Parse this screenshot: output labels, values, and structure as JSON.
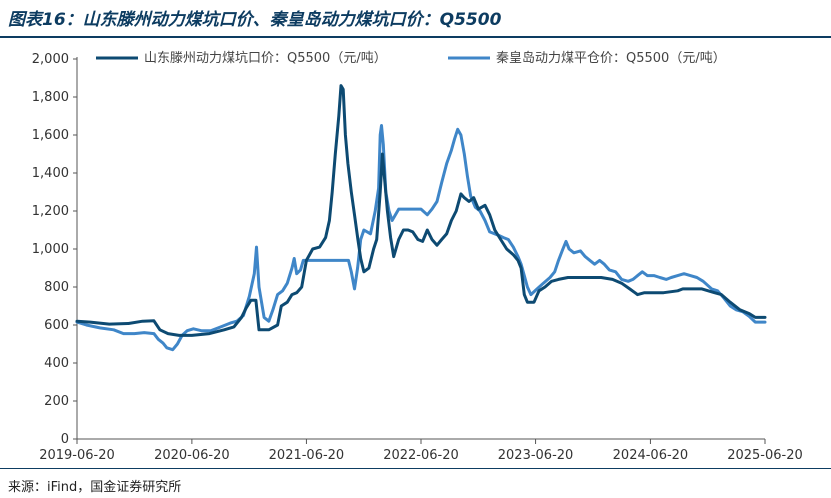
{
  "header": {
    "title": "图表16：山东滕州动力煤坑口价、秦皇岛动力煤坑口价：Q5500"
  },
  "footer": {
    "source": "来源：iFind，国金证券研究所"
  },
  "chart_data": {
    "type": "line",
    "title": "图表16：山东滕州动力煤坑口价、秦皇岛动力煤坑口价：Q5500",
    "ylim": [
      0,
      2000
    ],
    "yticks": [
      "0",
      "200",
      "400",
      "600",
      "800",
      "1,000",
      "1,200",
      "1,400",
      "1,600",
      "1,800",
      "2,000"
    ],
    "xticks": [
      "2019-06-20",
      "2020-06-20",
      "2021-06-20",
      "2022-06-20",
      "2023-06-20",
      "2024-06-20",
      "2025-06-20"
    ],
    "x_range": [
      "2019-06-20",
      "2025-06-20"
    ],
    "grid": false,
    "legend_position": "top",
    "series": [
      {
        "name": "山东滕州动力煤坑口价：Q5500（元/吨）",
        "color": "#0d4a72",
        "points": [
          [
            "2019-06-20",
            620
          ],
          [
            "2019-08-01",
            615
          ],
          [
            "2019-10-01",
            605
          ],
          [
            "2019-12-01",
            608
          ],
          [
            "2020-01-15",
            620
          ],
          [
            "2020-02-20",
            622
          ],
          [
            "2020-03-10",
            575
          ],
          [
            "2020-04-05",
            555
          ],
          [
            "2020-05-10",
            545
          ],
          [
            "2020-06-20",
            545
          ],
          [
            "2020-08-15",
            555
          ],
          [
            "2020-10-01",
            575
          ],
          [
            "2020-11-01",
            590
          ],
          [
            "2020-11-25",
            640
          ],
          [
            "2020-12-10",
            690
          ],
          [
            "2020-12-25",
            730
          ],
          [
            "2021-01-10",
            730
          ],
          [
            "2021-01-20",
            575
          ],
          [
            "2021-02-20",
            575
          ],
          [
            "2021-03-20",
            600
          ],
          [
            "2021-04-01",
            700
          ],
          [
            "2021-04-20",
            720
          ],
          [
            "2021-05-05",
            760
          ],
          [
            "2021-05-20",
            770
          ],
          [
            "2021-06-05",
            800
          ],
          [
            "2021-06-20",
            940
          ],
          [
            "2021-07-10",
            1000
          ],
          [
            "2021-08-01",
            1010
          ],
          [
            "2021-08-20",
            1060
          ],
          [
            "2021-09-01",
            1150
          ],
          [
            "2021-09-10",
            1300
          ],
          [
            "2021-09-20",
            1500
          ],
          [
            "2021-10-01",
            1700
          ],
          [
            "2021-10-08",
            1860
          ],
          [
            "2021-10-15",
            1840
          ],
          [
            "2021-10-22",
            1600
          ],
          [
            "2021-10-30",
            1450
          ],
          [
            "2021-11-10",
            1300
          ],
          [
            "2021-11-20",
            1180
          ],
          [
            "2021-12-01",
            1050
          ],
          [
            "2021-12-10",
            950
          ],
          [
            "2021-12-20",
            880
          ],
          [
            "2022-01-05",
            900
          ],
          [
            "2022-01-20",
            1000
          ],
          [
            "2022-01-30",
            1050
          ],
          [
            "2022-02-10",
            1300
          ],
          [
            "2022-02-17",
            1500
          ],
          [
            "2022-02-25",
            1350
          ],
          [
            "2022-03-05",
            1200
          ],
          [
            "2022-03-15",
            1060
          ],
          [
            "2022-03-25",
            960
          ],
          [
            "2022-04-10",
            1050
          ],
          [
            "2022-04-25",
            1100
          ],
          [
            "2022-05-10",
            1100
          ],
          [
            "2022-05-25",
            1090
          ],
          [
            "2022-06-10",
            1050
          ],
          [
            "2022-06-25",
            1040
          ],
          [
            "2022-07-10",
            1100
          ],
          [
            "2022-07-25",
            1050
          ],
          [
            "2022-08-10",
            1020
          ],
          [
            "2022-08-25",
            1050
          ],
          [
            "2022-09-10",
            1080
          ],
          [
            "2022-09-25",
            1150
          ],
          [
            "2022-10-10",
            1200
          ],
          [
            "2022-10-25",
            1290
          ],
          [
            "2022-11-05",
            1270
          ],
          [
            "2022-11-20",
            1250
          ],
          [
            "2022-12-05",
            1270
          ],
          [
            "2022-12-20",
            1210
          ],
          [
            "2023-01-10",
            1230
          ],
          [
            "2023-01-25",
            1180
          ],
          [
            "2023-02-10",
            1100
          ],
          [
            "2023-03-01",
            1050
          ],
          [
            "2023-03-20",
            1000
          ],
          [
            "2023-04-10",
            970
          ],
          [
            "2023-04-25",
            940
          ],
          [
            "2023-05-05",
            900
          ],
          [
            "2023-05-15",
            760
          ],
          [
            "2023-05-25",
            720
          ],
          [
            "2023-06-15",
            720
          ],
          [
            "2023-07-01",
            780
          ],
          [
            "2023-07-20",
            800
          ],
          [
            "2023-08-10",
            830
          ],
          [
            "2023-09-01",
            840
          ],
          [
            "2023-10-01",
            850
          ],
          [
            "2023-12-01",
            850
          ],
          [
            "2024-01-15",
            850
          ],
          [
            "2024-02-20",
            840
          ],
          [
            "2024-03-20",
            820
          ],
          [
            "2024-04-15",
            790
          ],
          [
            "2024-05-10",
            760
          ],
          [
            "2024-06-01",
            770
          ],
          [
            "2024-08-01",
            770
          ],
          [
            "2024-09-15",
            780
          ],
          [
            "2024-10-01",
            790
          ],
          [
            "2024-12-01",
            790
          ],
          [
            "2025-01-10",
            770
          ],
          [
            "2025-02-01",
            760
          ],
          [
            "2025-03-01",
            720
          ],
          [
            "2025-04-01",
            680
          ],
          [
            "2025-05-01",
            660
          ],
          [
            "2025-05-20",
            640
          ],
          [
            "2025-06-20",
            640
          ]
        ]
      },
      {
        "name": "秦皇岛动力煤平仓价：Q5500（元/吨）",
        "color": "#3f86c8",
        "points": [
          [
            "2019-06-20",
            615
          ],
          [
            "2019-07-20",
            600
          ],
          [
            "2019-09-01",
            585
          ],
          [
            "2019-10-15",
            575
          ],
          [
            "2019-11-15",
            555
          ],
          [
            "2019-12-20",
            555
          ],
          [
            "2020-01-20",
            560
          ],
          [
            "2020-02-20",
            555
          ],
          [
            "2020-03-05",
            525
          ],
          [
            "2020-03-20",
            505
          ],
          [
            "2020-04-01",
            480
          ],
          [
            "2020-04-20",
            470
          ],
          [
            "2020-05-05",
            500
          ],
          [
            "2020-05-20",
            545
          ],
          [
            "2020-06-05",
            570
          ],
          [
            "2020-06-25",
            580
          ],
          [
            "2020-07-20",
            570
          ],
          [
            "2020-08-20",
            570
          ],
          [
            "2020-09-20",
            590
          ],
          [
            "2020-10-20",
            610
          ],
          [
            "2020-11-10",
            620
          ],
          [
            "2020-12-01",
            650
          ],
          [
            "2020-12-20",
            750
          ],
          [
            "2021-01-05",
            870
          ],
          [
            "2021-01-12",
            1010
          ],
          [
            "2021-01-20",
            800
          ],
          [
            "2021-02-05",
            640
          ],
          [
            "2021-02-20",
            620
          ],
          [
            "2021-03-05",
            680
          ],
          [
            "2021-03-20",
            760
          ],
          [
            "2021-04-05",
            780
          ],
          [
            "2021-04-20",
            820
          ],
          [
            "2021-05-05",
            900
          ],
          [
            "2021-05-12",
            950
          ],
          [
            "2021-05-20",
            870
          ],
          [
            "2021-06-01",
            890
          ],
          [
            "2021-06-10",
            940
          ],
          [
            "2021-09-15",
            940
          ],
          [
            "2021-10-15",
            940
          ],
          [
            "2021-11-01",
            940
          ],
          [
            "2021-11-10",
            880
          ],
          [
            "2021-11-20",
            790
          ],
          [
            "2021-11-30",
            900
          ],
          [
            "2021-12-10",
            1050
          ],
          [
            "2021-12-20",
            1100
          ],
          [
            "2022-01-10",
            1080
          ],
          [
            "2022-01-25",
            1200
          ],
          [
            "2022-02-05",
            1320
          ],
          [
            "2022-02-10",
            1600
          ],
          [
            "2022-02-14",
            1650
          ],
          [
            "2022-02-20",
            1550
          ],
          [
            "2022-02-28",
            1300
          ],
          [
            "2022-03-10",
            1200
          ],
          [
            "2022-03-20",
            1150
          ],
          [
            "2022-04-10",
            1210
          ],
          [
            "2022-05-15",
            1210
          ],
          [
            "2022-06-20",
            1210
          ],
          [
            "2022-07-10",
            1180
          ],
          [
            "2022-07-25",
            1210
          ],
          [
            "2022-08-10",
            1250
          ],
          [
            "2022-08-25",
            1350
          ],
          [
            "2022-09-10",
            1450
          ],
          [
            "2022-09-25",
            1520
          ],
          [
            "2022-10-05",
            1580
          ],
          [
            "2022-10-15",
            1630
          ],
          [
            "2022-10-25",
            1600
          ],
          [
            "2022-11-05",
            1500
          ],
          [
            "2022-11-15",
            1380
          ],
          [
            "2022-11-25",
            1280
          ],
          [
            "2022-12-10",
            1220
          ],
          [
            "2022-12-25",
            1200
          ],
          [
            "2023-01-10",
            1150
          ],
          [
            "2023-01-25",
            1090
          ],
          [
            "2023-02-10",
            1080
          ],
          [
            "2023-02-25",
            1070
          ],
          [
            "2023-03-10",
            1060
          ],
          [
            "2023-03-25",
            1050
          ],
          [
            "2023-04-10",
            1010
          ],
          [
            "2023-04-25",
            960
          ],
          [
            "2023-05-05",
            920
          ],
          [
            "2023-05-15",
            860
          ],
          [
            "2023-05-25",
            800
          ],
          [
            "2023-06-05",
            760
          ],
          [
            "2023-06-25",
            790
          ],
          [
            "2023-07-15",
            820
          ],
          [
            "2023-08-05",
            850
          ],
          [
            "2023-08-20",
            880
          ],
          [
            "2023-09-01",
            940
          ],
          [
            "2023-09-15",
            1000
          ],
          [
            "2023-09-25",
            1040
          ],
          [
            "2023-10-05",
            1000
          ],
          [
            "2023-10-20",
            980
          ],
          [
            "2023-11-10",
            990
          ],
          [
            "2023-11-25",
            960
          ],
          [
            "2023-12-10",
            940
          ],
          [
            "2023-12-25",
            920
          ],
          [
            "2024-01-10",
            940
          ],
          [
            "2024-01-25",
            920
          ],
          [
            "2024-02-10",
            890
          ],
          [
            "2024-03-01",
            880
          ],
          [
            "2024-03-20",
            840
          ],
          [
            "2024-04-10",
            830
          ],
          [
            "2024-04-25",
            840
          ],
          [
            "2024-05-10",
            860
          ],
          [
            "2024-05-25",
            880
          ],
          [
            "2024-06-10",
            860
          ],
          [
            "2024-07-01",
            860
          ],
          [
            "2024-07-20",
            850
          ],
          [
            "2024-08-10",
            840
          ],
          [
            "2024-08-25",
            850
          ],
          [
            "2024-09-15",
            860
          ],
          [
            "2024-10-05",
            870
          ],
          [
            "2024-10-25",
            860
          ],
          [
            "2024-11-15",
            850
          ],
          [
            "2024-12-05",
            830
          ],
          [
            "2025-01-01",
            790
          ],
          [
            "2025-01-20",
            780
          ],
          [
            "2025-02-10",
            740
          ],
          [
            "2025-03-01",
            700
          ],
          [
            "2025-03-20",
            680
          ],
          [
            "2025-04-10",
            670
          ],
          [
            "2025-05-01",
            645
          ],
          [
            "2025-05-20",
            615
          ],
          [
            "2025-06-20",
            615
          ]
        ]
      }
    ]
  }
}
